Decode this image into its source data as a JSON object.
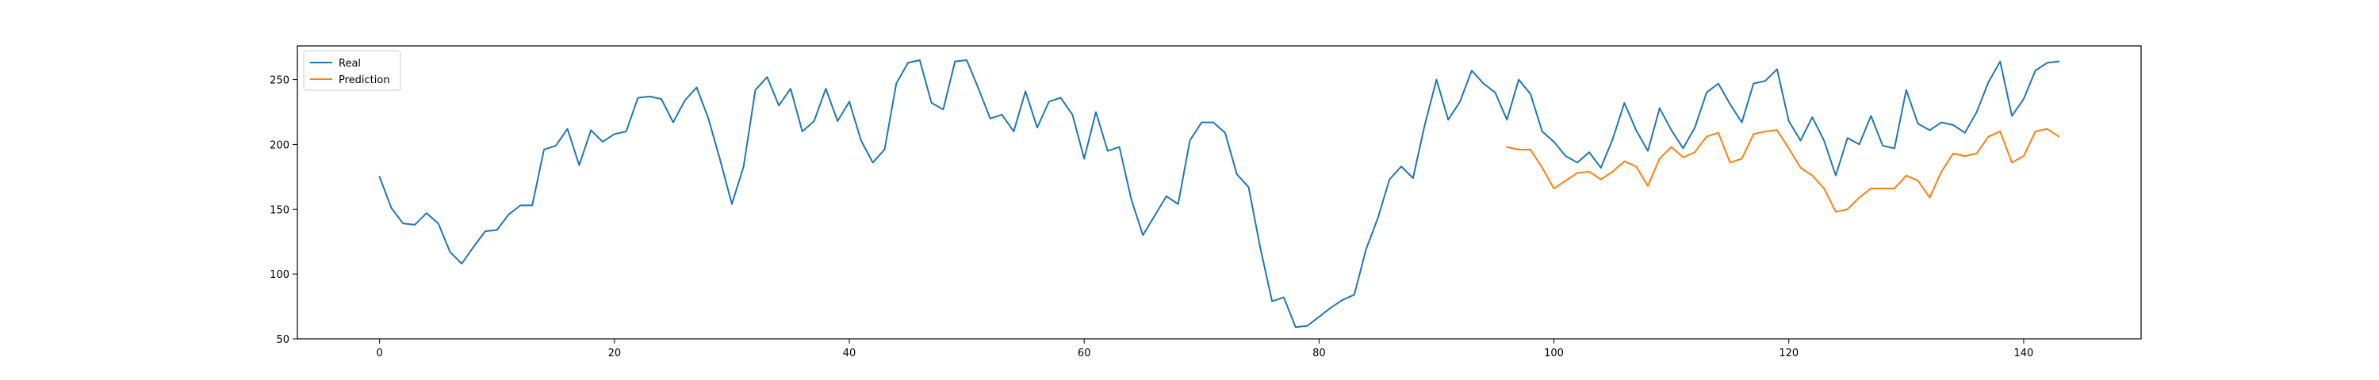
{
  "chart_data": {
    "type": "line",
    "title": "",
    "xlabel": "",
    "ylabel": "",
    "xlim": [
      -7,
      150
    ],
    "ylim": [
      50,
      276
    ],
    "xticks": [
      0,
      20,
      40,
      60,
      80,
      100,
      120,
      140
    ],
    "yticks": [
      50,
      100,
      150,
      200,
      250
    ],
    "grid": false,
    "legend_position": "top-left",
    "series": [
      {
        "name": "Real",
        "color": "#1f77b4",
        "x_start": 0,
        "values": [
          175,
          151,
          139,
          138,
          147,
          139,
          117,
          108,
          121,
          133,
          134,
          146,
          153,
          153,
          196,
          199,
          212,
          184,
          211,
          202,
          208,
          210,
          236,
          237,
          235,
          217,
          234,
          244,
          220,
          188,
          154,
          183,
          242,
          252,
          230,
          243,
          210,
          218,
          243,
          218,
          233,
          203,
          186,
          196,
          247,
          263,
          265,
          232,
          227,
          264,
          265,
          243,
          220,
          223,
          210,
          241,
          213,
          233,
          236,
          223,
          189,
          225,
          195,
          198,
          158,
          130,
          145,
          160,
          154,
          203,
          217,
          217,
          209,
          177,
          167,
          120,
          79,
          82,
          59,
          60,
          67,
          74,
          80,
          84,
          119,
          143,
          173,
          183,
          174,
          215,
          250,
          219,
          233,
          257,
          247,
          240,
          219,
          250,
          239,
          210,
          202,
          191,
          186,
          194,
          182,
          204,
          232,
          211,
          195,
          228,
          211,
          197,
          213,
          240,
          247,
          231,
          217,
          247,
          249,
          258,
          218,
          203,
          221,
          203,
          176,
          205,
          200,
          222,
          199,
          197,
          242,
          216,
          211,
          217,
          215,
          209,
          225,
          248,
          264,
          222,
          235,
          257,
          263,
          264
        ]
      },
      {
        "name": "Prediction",
        "color": "#ff7f0e",
        "x_start": 96,
        "values": [
          198,
          196,
          196,
          182,
          166,
          172,
          178,
          179,
          173,
          179,
          187,
          183,
          168,
          189,
          198,
          190,
          194,
          206,
          209,
          186,
          189,
          208,
          210,
          211,
          197,
          182,
          176,
          166,
          148,
          150,
          159,
          166,
          166,
          166,
          176,
          172,
          159,
          179,
          193,
          191,
          193,
          206,
          210,
          186,
          191,
          210,
          212,
          206
        ]
      }
    ]
  }
}
